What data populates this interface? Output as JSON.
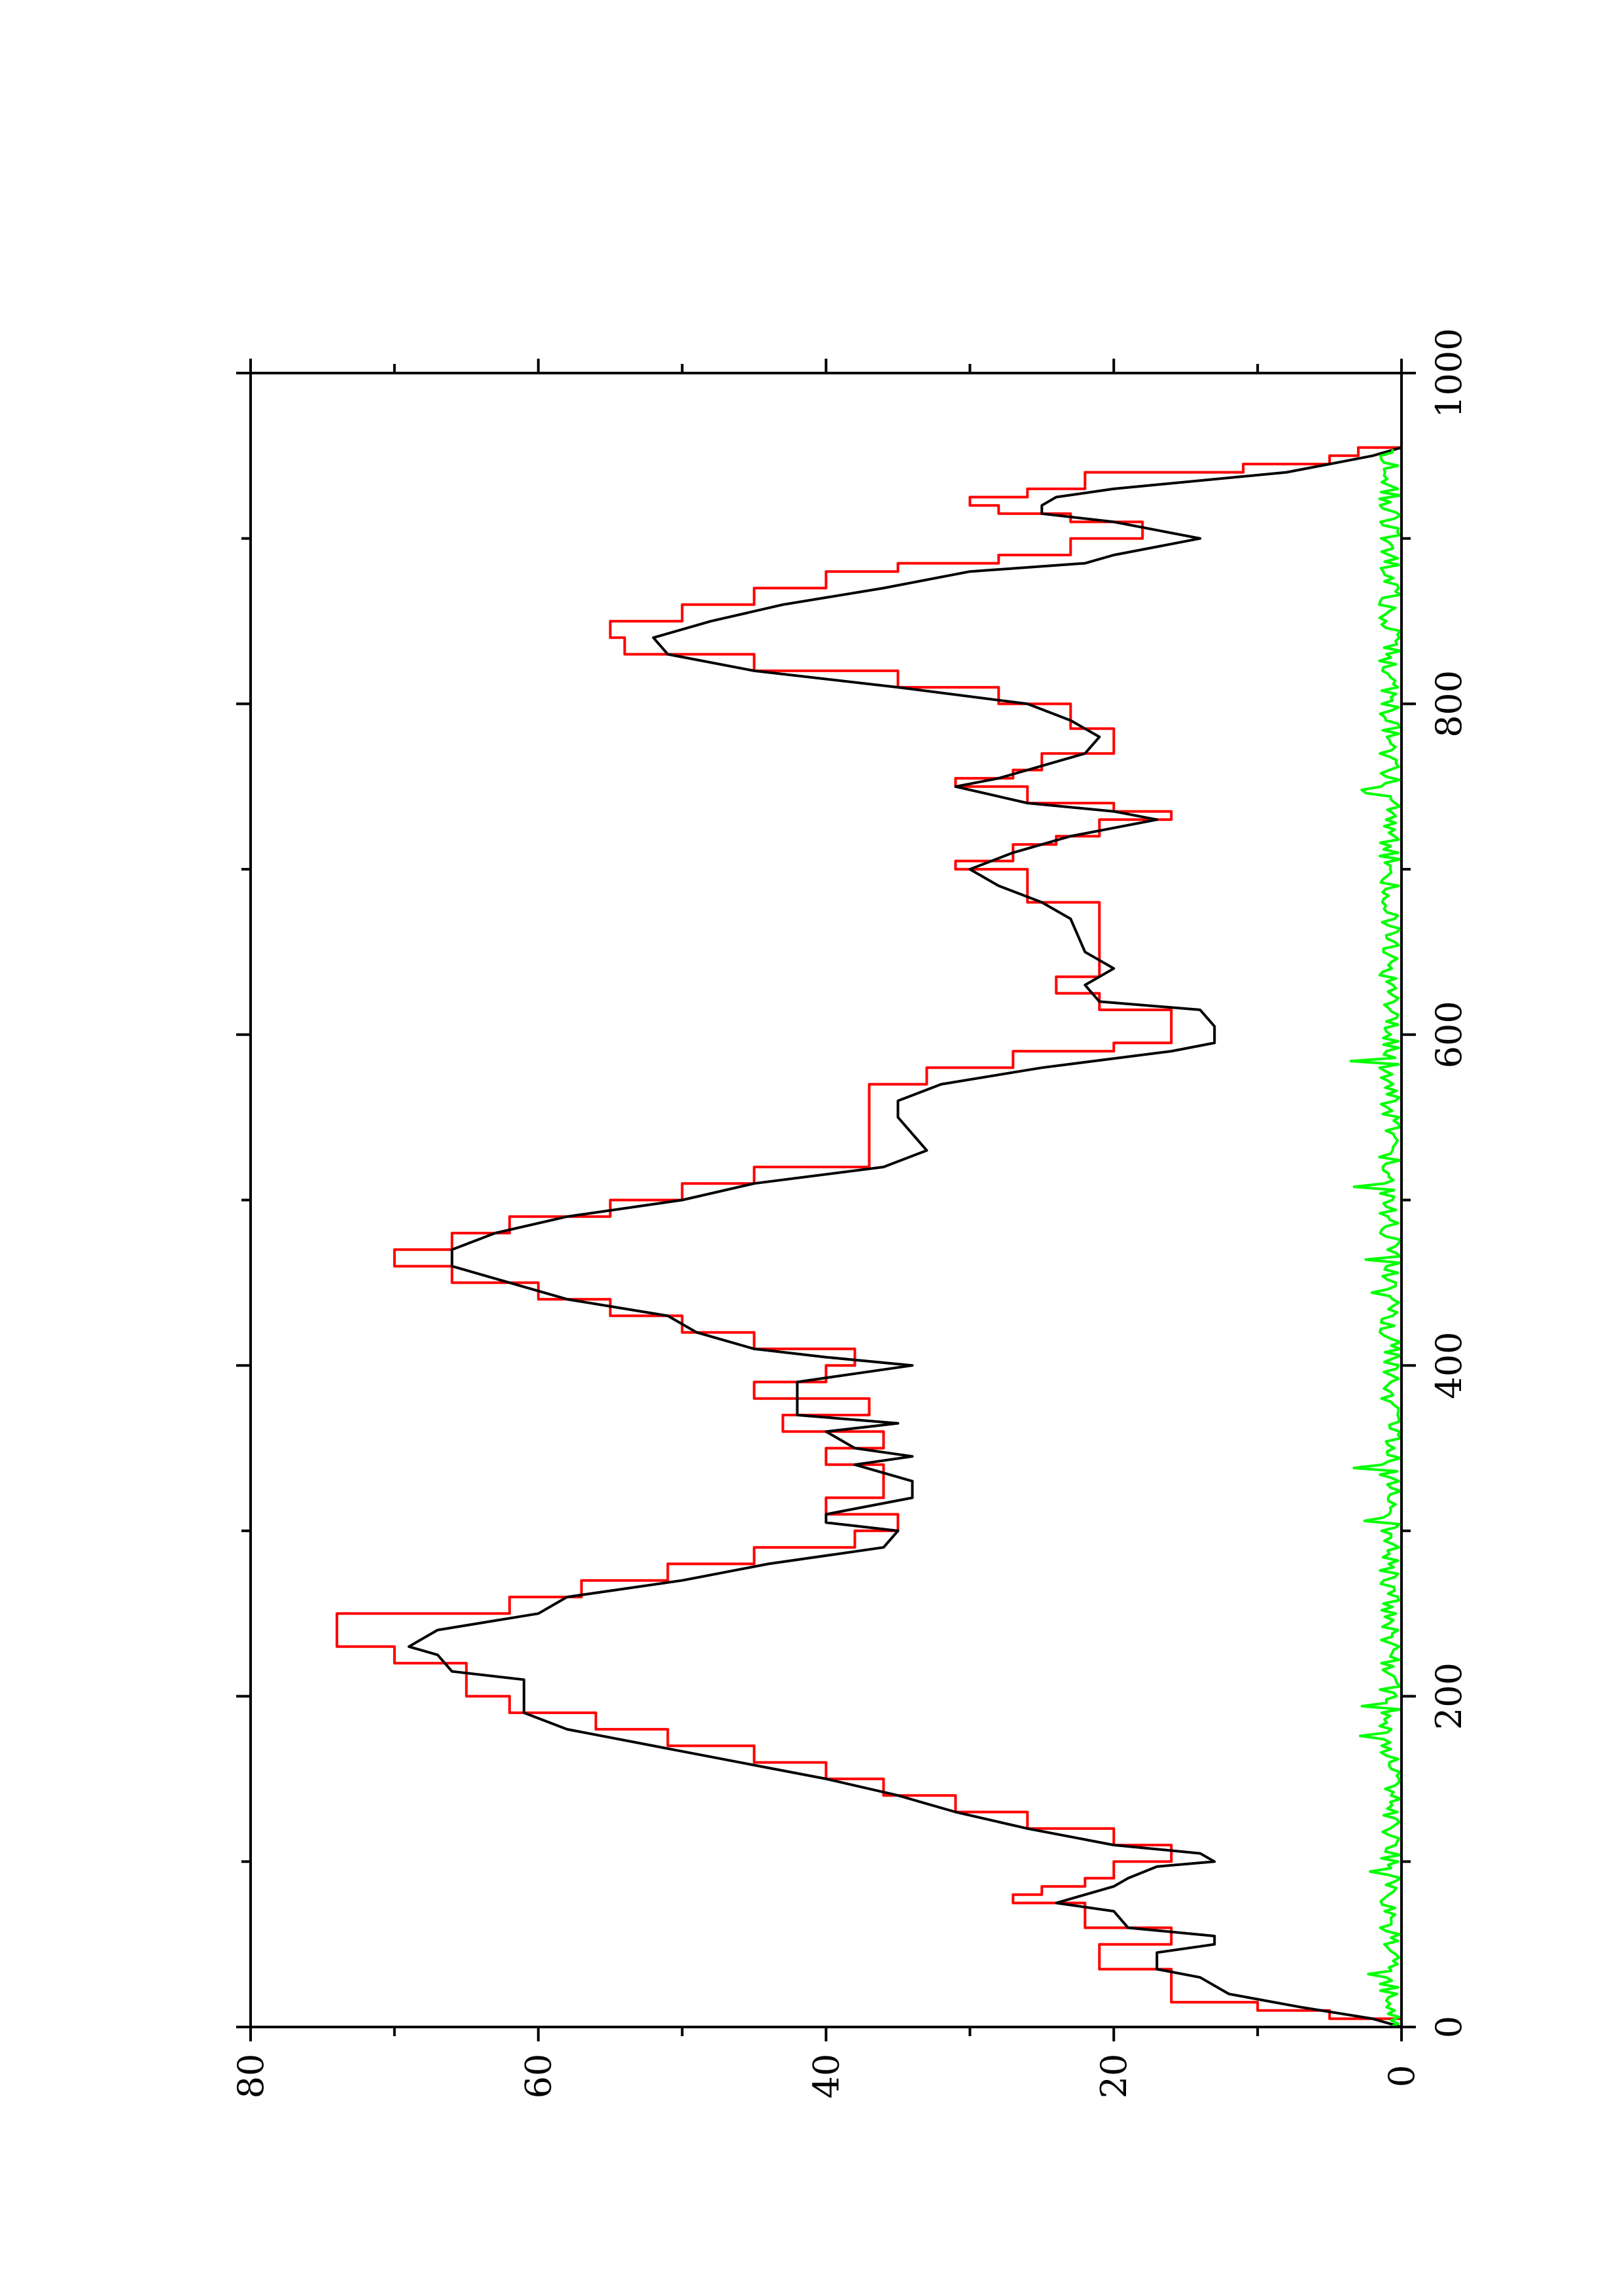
{
  "chart_data": {
    "type": "line",
    "title": "",
    "xlabel": "",
    "ylabel": "",
    "orientation": "rotated-90-clockwise",
    "xlim": [
      0,
      1000
    ],
    "ylim": [
      0,
      80
    ],
    "x_ticks": [
      {
        "value": 0,
        "label": "0"
      },
      {
        "value": 200,
        "label": "200"
      },
      {
        "value": 400,
        "label": "400"
      },
      {
        "value": 600,
        "label": "600"
      },
      {
        "value": 800,
        "label": "800"
      },
      {
        "value": 1000,
        "label": "1000"
      }
    ],
    "y_ticks": [
      {
        "value": 0,
        "label": "0"
      },
      {
        "value": 20,
        "label": "20"
      },
      {
        "value": 40,
        "label": "40"
      },
      {
        "value": 60,
        "label": "60"
      },
      {
        "value": 80,
        "label": "80"
      }
    ],
    "x_minor_ticks": [
      100,
      300,
      500,
      700,
      900
    ],
    "y_minor_ticks": [
      10,
      30,
      50,
      70
    ],
    "grid": false,
    "legend": "none",
    "series": [
      {
        "key": "red-step",
        "color": "#ff0000",
        "step": true,
        "points": [
          [
            0,
            0
          ],
          [
            5,
            5
          ],
          [
            10,
            10
          ],
          [
            15,
            16
          ],
          [
            30,
            16
          ],
          [
            35,
            21
          ],
          [
            45,
            21
          ],
          [
            50,
            16
          ],
          [
            55,
            16
          ],
          [
            60,
            22
          ],
          [
            70,
            22
          ],
          [
            75,
            27
          ],
          [
            80,
            25
          ],
          [
            85,
            22
          ],
          [
            90,
            20
          ],
          [
            100,
            16
          ],
          [
            105,
            16
          ],
          [
            110,
            20
          ],
          [
            120,
            26
          ],
          [
            130,
            31
          ],
          [
            140,
            36
          ],
          [
            150,
            40
          ],
          [
            160,
            45
          ],
          [
            170,
            51
          ],
          [
            180,
            56
          ],
          [
            190,
            62
          ],
          [
            200,
            65
          ],
          [
            210,
            65
          ],
          [
            220,
            70
          ],
          [
            230,
            74
          ],
          [
            240,
            74
          ],
          [
            250,
            62
          ],
          [
            260,
            57
          ],
          [
            270,
            51
          ],
          [
            280,
            45
          ],
          [
            290,
            38
          ],
          [
            300,
            35
          ],
          [
            310,
            40
          ],
          [
            320,
            36
          ],
          [
            330,
            36
          ],
          [
            340,
            40
          ],
          [
            350,
            36
          ],
          [
            360,
            43
          ],
          [
            370,
            37
          ],
          [
            380,
            45
          ],
          [
            390,
            40
          ],
          [
            400,
            38
          ],
          [
            410,
            45
          ],
          [
            420,
            50
          ],
          [
            430,
            55
          ],
          [
            440,
            60
          ],
          [
            450,
            66
          ],
          [
            460,
            70
          ],
          [
            470,
            66
          ],
          [
            480,
            62
          ],
          [
            490,
            55
          ],
          [
            500,
            50
          ],
          [
            510,
            45
          ],
          [
            520,
            37
          ],
          [
            530,
            37
          ],
          [
            560,
            37
          ],
          [
            570,
            33
          ],
          [
            580,
            27
          ],
          [
            590,
            20
          ],
          [
            595,
            16
          ],
          [
            610,
            16
          ],
          [
            615,
            21
          ],
          [
            625,
            24
          ],
          [
            635,
            21
          ],
          [
            640,
            21
          ],
          [
            650,
            21
          ],
          [
            670,
            21
          ],
          [
            675,
            21
          ],
          [
            680,
            26
          ],
          [
            690,
            26
          ],
          [
            700,
            31
          ],
          [
            705,
            27
          ],
          [
            710,
            27
          ],
          [
            715,
            24
          ],
          [
            720,
            21
          ],
          [
            730,
            16
          ],
          [
            735,
            20
          ],
          [
            740,
            26
          ],
          [
            750,
            31
          ],
          [
            755,
            27
          ],
          [
            760,
            25
          ],
          [
            770,
            20
          ],
          [
            780,
            20
          ],
          [
            785,
            23
          ],
          [
            790,
            23
          ],
          [
            800,
            28
          ],
          [
            810,
            35
          ],
          [
            820,
            45
          ],
          [
            830,
            54
          ],
          [
            840,
            55
          ],
          [
            850,
            50
          ],
          [
            860,
            45
          ],
          [
            870,
            40
          ],
          [
            880,
            35
          ],
          [
            885,
            28
          ],
          [
            890,
            23
          ],
          [
            900,
            18
          ],
          [
            910,
            23
          ],
          [
            915,
            28
          ],
          [
            920,
            30
          ],
          [
            925,
            26
          ],
          [
            930,
            22
          ],
          [
            940,
            11
          ],
          [
            945,
            5
          ],
          [
            950,
            3
          ],
          [
            955,
            0
          ]
        ]
      },
      {
        "key": "black-line",
        "color": "#000000",
        "step": false,
        "points": [
          [
            0,
            0
          ],
          [
            5,
            2
          ],
          [
            12,
            7
          ],
          [
            20,
            12
          ],
          [
            30,
            14
          ],
          [
            35,
            17
          ],
          [
            45,
            17
          ],
          [
            50,
            13
          ],
          [
            55,
            13
          ],
          [
            60,
            19
          ],
          [
            70,
            20
          ],
          [
            75,
            24
          ],
          [
            80,
            22
          ],
          [
            85,
            20
          ],
          [
            90,
            19
          ],
          [
            97,
            17
          ],
          [
            100,
            13
          ],
          [
            105,
            14
          ],
          [
            110,
            20
          ],
          [
            120,
            26
          ],
          [
            130,
            31
          ],
          [
            140,
            35
          ],
          [
            150,
            40
          ],
          [
            160,
            46
          ],
          [
            170,
            52
          ],
          [
            180,
            58
          ],
          [
            190,
            61
          ],
          [
            200,
            61
          ],
          [
            210,
            61
          ],
          [
            215,
            66
          ],
          [
            225,
            67
          ],
          [
            230,
            69
          ],
          [
            240,
            67
          ],
          [
            250,
            60
          ],
          [
            260,
            58
          ],
          [
            270,
            50
          ],
          [
            280,
            44
          ],
          [
            290,
            36
          ],
          [
            300,
            35
          ],
          [
            305,
            40
          ],
          [
            310,
            40
          ],
          [
            320,
            34
          ],
          [
            330,
            34
          ],
          [
            340,
            38
          ],
          [
            345,
            34
          ],
          [
            350,
            38
          ],
          [
            360,
            40
          ],
          [
            365,
            35
          ],
          [
            370,
            42
          ],
          [
            380,
            42
          ],
          [
            390,
            42
          ],
          [
            395,
            38
          ],
          [
            400,
            34
          ],
          [
            405,
            40
          ],
          [
            410,
            45
          ],
          [
            420,
            49
          ],
          [
            430,
            51
          ],
          [
            440,
            58
          ],
          [
            450,
            62
          ],
          [
            460,
            66
          ],
          [
            470,
            66
          ],
          [
            480,
            63
          ],
          [
            490,
            58
          ],
          [
            500,
            50
          ],
          [
            510,
            45
          ],
          [
            520,
            36
          ],
          [
            530,
            33
          ],
          [
            540,
            34
          ],
          [
            550,
            35
          ],
          [
            555,
            35
          ],
          [
            560,
            35
          ],
          [
            570,
            32
          ],
          [
            580,
            25
          ],
          [
            590,
            16
          ],
          [
            595,
            13
          ],
          [
            605,
            13
          ],
          [
            615,
            14
          ],
          [
            620,
            21
          ],
          [
            630,
            22
          ],
          [
            640,
            20
          ],
          [
            650,
            22
          ],
          [
            670,
            23
          ],
          [
            680,
            25
          ],
          [
            690,
            28
          ],
          [
            700,
            30
          ],
          [
            710,
            27
          ],
          [
            715,
            25
          ],
          [
            720,
            23
          ],
          [
            730,
            17
          ],
          [
            735,
            20
          ],
          [
            740,
            26
          ],
          [
            750,
            31
          ],
          [
            755,
            28
          ],
          [
            760,
            26
          ],
          [
            770,
            22
          ],
          [
            780,
            21
          ],
          [
            785,
            22
          ],
          [
            790,
            23
          ],
          [
            800,
            26
          ],
          [
            810,
            35
          ],
          [
            820,
            45
          ],
          [
            830,
            51
          ],
          [
            840,
            52
          ],
          [
            850,
            48
          ],
          [
            860,
            43
          ],
          [
            870,
            36
          ],
          [
            880,
            30
          ],
          [
            885,
            22
          ],
          [
            890,
            20
          ],
          [
            900,
            14
          ],
          [
            910,
            20
          ],
          [
            915,
            25
          ],
          [
            920,
            25
          ],
          [
            925,
            24
          ],
          [
            930,
            20
          ],
          [
            940,
            8
          ],
          [
            945,
            5
          ],
          [
            950,
            2
          ],
          [
            955,
            0
          ]
        ]
      },
      {
        "key": "green-noise",
        "color": "#00ff00",
        "step": false,
        "noise": {
          "x_start": 0,
          "x_end": 955,
          "step": 2,
          "base": 0.5,
          "amplitude": 1.5,
          "seed": 7
        }
      }
    ]
  }
}
